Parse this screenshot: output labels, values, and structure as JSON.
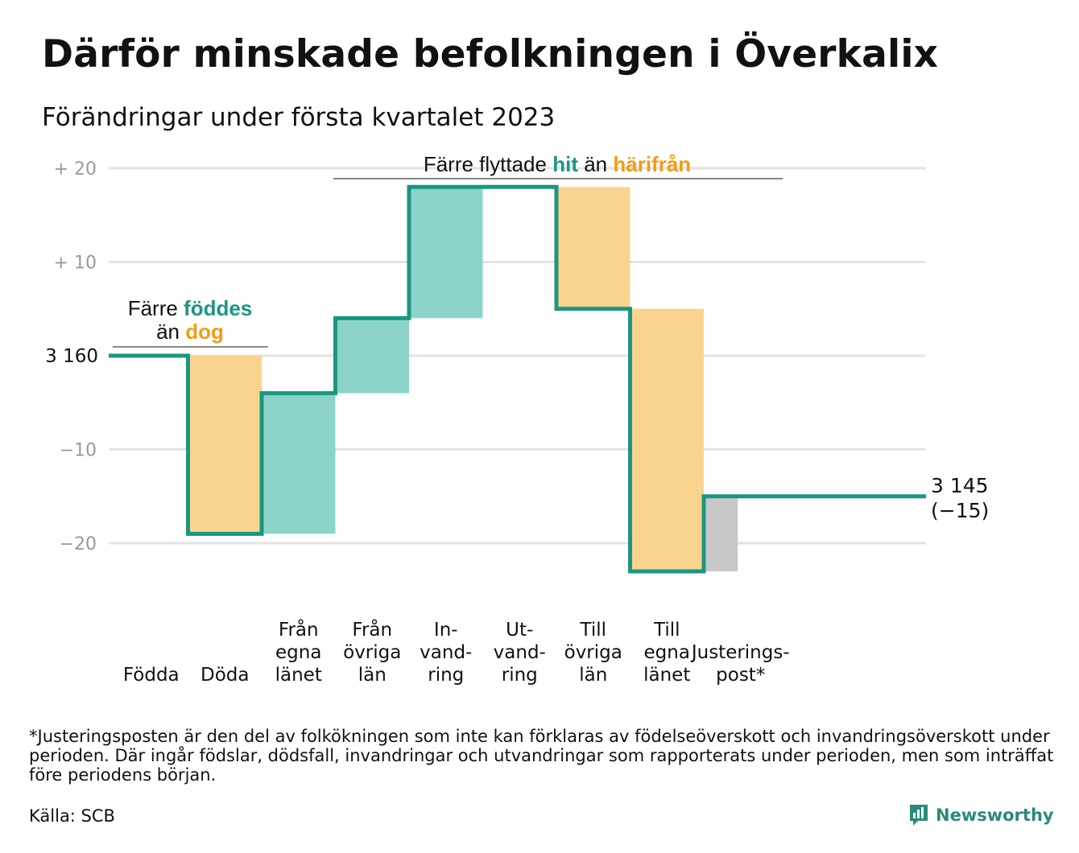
{
  "title": "Därför minskade befolkningen i Överkalix",
  "subtitle": "Förändringar under första kvartalet 2023",
  "colors": {
    "teal": "#1a9682",
    "teal_fill": "#8cd4ca",
    "orange": "#f39c12",
    "orange_fill": "#f9d48e",
    "grey_fill": "#c8c8c8",
    "grid": "#e3e3e3",
    "axis_text": "#9a9a9a"
  },
  "chart_data": {
    "type": "waterfall",
    "start_value": 3160,
    "start_label": "3 160",
    "end_label_line1": "3 145",
    "end_label_line2": "(−15)",
    "ylim": [
      -23,
      20
    ],
    "y_ticks": [
      {
        "value": 20,
        "label": "+ 20"
      },
      {
        "value": 10,
        "label": "+ 10"
      },
      {
        "value": 0,
        "label": ""
      },
      {
        "value": -10,
        "label": "−10"
      },
      {
        "value": -20,
        "label": "−20"
      }
    ],
    "steps": [
      {
        "label_lines": [
          "Födda"
        ],
        "value": 0,
        "kind": "neutral"
      },
      {
        "label_lines": [
          "Döda"
        ],
        "value": -19,
        "kind": "out"
      },
      {
        "label_lines": [
          "Från",
          "egna",
          "länet"
        ],
        "value": 15,
        "kind": "in"
      },
      {
        "label_lines": [
          "Från",
          "övriga",
          "län"
        ],
        "value": 8,
        "kind": "in"
      },
      {
        "label_lines": [
          "In-",
          "vand-",
          "ring"
        ],
        "value": 14,
        "kind": "in"
      },
      {
        "label_lines": [
          "Ut-",
          "vand-",
          "ring"
        ],
        "value": 0,
        "kind": "neutral"
      },
      {
        "label_lines": [
          "Till",
          "övriga",
          "län"
        ],
        "value": -13,
        "kind": "out"
      },
      {
        "label_lines": [
          "Till",
          "egna",
          "länet"
        ],
        "value": -28,
        "kind": "out"
      },
      {
        "label_lines": [
          "Justerings-",
          "post*"
        ],
        "value": 8,
        "kind": "adjust"
      }
    ],
    "annotations": {
      "births": {
        "line1_pre": "Färre ",
        "line1_hl": "föddes",
        "line2_pre": "än ",
        "line2_hl": "dog"
      },
      "migration": {
        "pre": "Färre flyttade ",
        "hl1": "hit",
        "mid": " än ",
        "hl2": "härifrån"
      }
    }
  },
  "footnote": "*Justeringsposten är den del av folkökningen som inte kan förklaras av födelseöverskott och invandringsöverskott under perioden. Där ingår födslar, dödsfall, invandringar och utvandringar som rapporterats under perioden, men som inträffat före periodens början.",
  "source": "Källa: SCB",
  "brand": "Newsworthy",
  "brand_icon": "bar-chart-bubble-icon"
}
